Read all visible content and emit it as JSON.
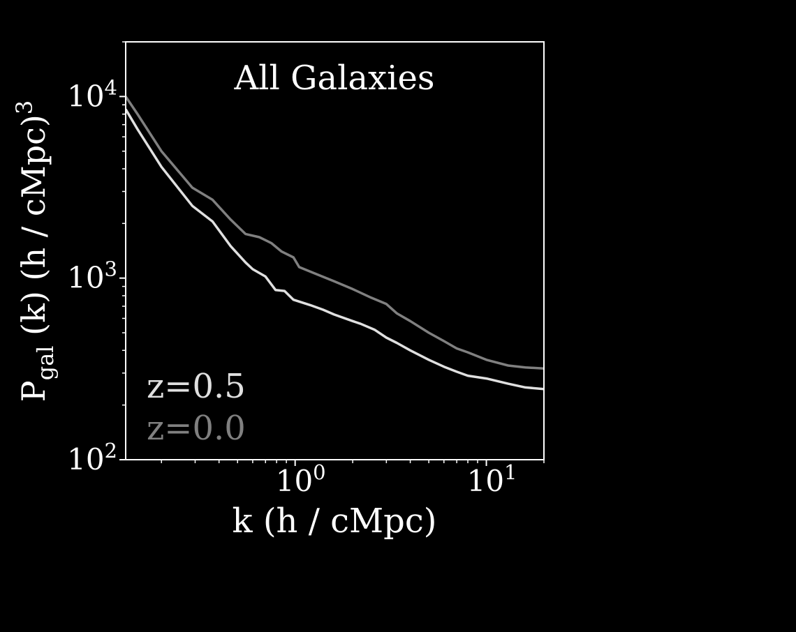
{
  "chart_data": {
    "type": "line",
    "title": "All Galaxies",
    "xlabel": "k (h / cMpc)",
    "ylabel_main": "P",
    "ylabel_sub": "gal",
    "ylabel_rest": " (k) (h / cMpc)",
    "ylabel_sup": "3",
    "xscale": "log",
    "yscale": "log",
    "xlim": [
      0.13,
      20
    ],
    "ylim": [
      100,
      20000
    ],
    "grid": false,
    "legend_placement": "lower-left",
    "x_ticks": [
      {
        "value": 1,
        "base": "10",
        "exp": "0"
      },
      {
        "value": 10,
        "base": "10",
        "exp": "1"
      }
    ],
    "y_ticks": [
      {
        "value": 100,
        "base": "10",
        "exp": "2"
      },
      {
        "value": 1000,
        "base": "10",
        "exp": "3"
      },
      {
        "value": 10000,
        "base": "10",
        "exp": "4"
      }
    ],
    "colors": {
      "background": "#000000",
      "axes": "#ffffff",
      "z05": "#e0e0e0",
      "z00": "#808080"
    },
    "series": [
      {
        "name": "z=0.5",
        "color": "#e0e0e0",
        "x": [
          0.13,
          0.15,
          0.2,
          0.29,
          0.37,
          0.46,
          0.55,
          0.6,
          0.7,
          0.79,
          0.88,
          0.98,
          1.2,
          1.4,
          1.6,
          2.0,
          2.2,
          2.6,
          3.0,
          3.4,
          4.0,
          5.0,
          6.0,
          7.0,
          8.0,
          10.0,
          13.0,
          16.0,
          20.0
        ],
        "y": [
          8500,
          6600,
          4100,
          2500,
          2050,
          1500,
          1220,
          1120,
          1020,
          860,
          850,
          760,
          710,
          670,
          630,
          580,
          560,
          520,
          470,
          440,
          400,
          355,
          325,
          305,
          290,
          280,
          262,
          250,
          245
        ]
      },
      {
        "name": "z=0.0",
        "color": "#808080",
        "x": [
          0.13,
          0.15,
          0.2,
          0.29,
          0.37,
          0.46,
          0.55,
          0.65,
          0.75,
          0.85,
          0.98,
          1.05,
          1.3,
          1.6,
          2.0,
          2.5,
          3.0,
          3.4,
          4.0,
          5.0,
          6.0,
          7.0,
          8.0,
          10.0,
          13.0,
          16.0,
          20.0
        ],
        "y": [
          10000,
          8000,
          5000,
          3150,
          2700,
          2100,
          1750,
          1680,
          1560,
          1400,
          1300,
          1150,
          1050,
          960,
          870,
          780,
          720,
          640,
          580,
          500,
          450,
          410,
          390,
          355,
          330,
          322,
          318
        ]
      }
    ]
  }
}
